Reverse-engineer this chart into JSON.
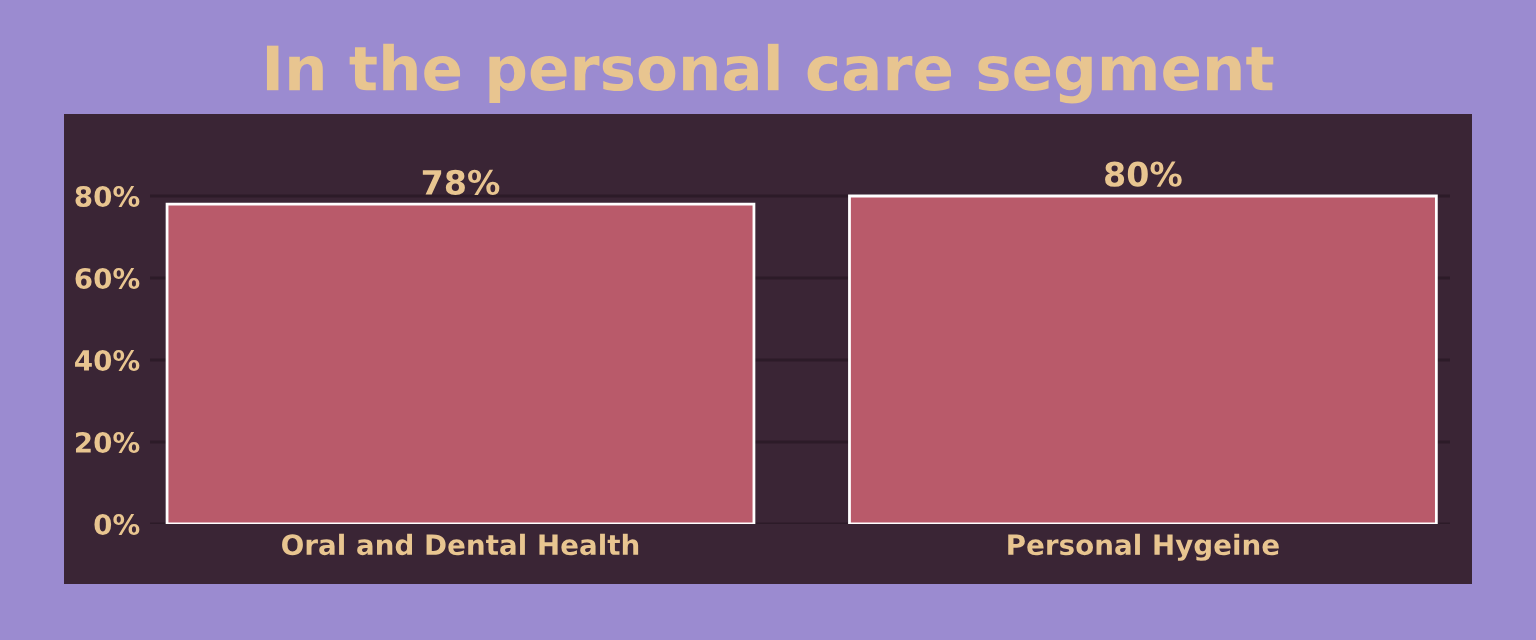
{
  "chart_data": {
    "type": "bar",
    "title": "In the personal care segment",
    "categories": [
      "Oral and Dental Health",
      "Personal Hygeine"
    ],
    "values": [
      78,
      80
    ],
    "color": "#b95a6a",
    "value_labels": [
      "78%",
      "80%"
    ],
    "ylim": [
      0,
      100
    ],
    "yticks": [
      {
        "value": 0,
        "label": "0%"
      },
      {
        "value": 20,
        "label": "20%"
      },
      {
        "value": 40,
        "label": "40%"
      },
      {
        "value": 60,
        "label": "60%"
      },
      {
        "value": 80,
        "label": "80%"
      }
    ],
    "grid": "y"
  }
}
